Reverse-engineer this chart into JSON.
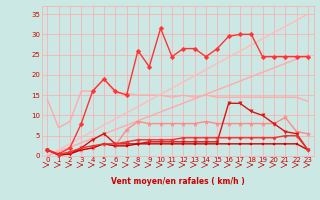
{
  "xlabel": "Vent moyen/en rafales ( km/h )",
  "bg_color": "#cce8e4",
  "grid_color": "#ffaaaa",
  "text_color": "#cc0000",
  "xlim": [
    -0.5,
    23.5
  ],
  "ylim": [
    0,
    37
  ],
  "yticks": [
    0,
    5,
    10,
    15,
    20,
    25,
    30,
    35
  ],
  "xticks": [
    0,
    1,
    2,
    3,
    4,
    5,
    6,
    7,
    8,
    9,
    10,
    11,
    12,
    13,
    14,
    15,
    16,
    17,
    18,
    19,
    20,
    21,
    22,
    23
  ],
  "line_flat_pink": {
    "color": "#ffaaaa",
    "lw": 1.0,
    "y": [
      14,
      7,
      8.5,
      16,
      16,
      19,
      15.5,
      15.5,
      15,
      15,
      15,
      14.5,
      15,
      14.5,
      15,
      14.5,
      14.5,
      14.5,
      14.5,
      14.5,
      14.5,
      14.5,
      14.5,
      13.5
    ]
  },
  "line_diag1": {
    "color": "#ffbbbb",
    "lw": 1.0,
    "y": [
      0,
      1.52,
      3.04,
      4.57,
      6.09,
      7.61,
      9.13,
      10.65,
      12.17,
      13.7,
      15.22,
      16.74,
      18.26,
      19.78,
      21.3,
      22.83,
      24.35,
      25.87,
      27.39,
      28.91,
      30.43,
      31.96,
      33.48,
      35.0
    ]
  },
  "line_diag2": {
    "color": "#ffaaaa",
    "lw": 1.0,
    "y": [
      0,
      1.09,
      2.17,
      3.26,
      4.35,
      5.43,
      6.52,
      7.61,
      8.7,
      9.78,
      10.87,
      11.96,
      13.04,
      14.13,
      15.22,
      16.3,
      17.39,
      18.48,
      19.57,
      20.65,
      21.74,
      22.83,
      23.91,
      25.0
    ]
  },
  "line_salmon_star": {
    "color": "#ff8888",
    "lw": 1.0,
    "marker": "*",
    "ms": 3.5,
    "y": [
      1.5,
      0.5,
      1,
      1.5,
      2,
      3,
      2.5,
      6.5,
      8.5,
      8,
      8,
      8,
      8,
      8,
      8.5,
      8,
      8,
      8,
      8,
      8,
      8,
      9.5,
      6,
      5.5
    ]
  },
  "line_main_red": {
    "color": "#ff3333",
    "lw": 1.0,
    "marker": "D",
    "ms": 2.5,
    "y": [
      1.5,
      0.5,
      2,
      8,
      16,
      19,
      16,
      15,
      26,
      22,
      31.5,
      24.5,
      26.5,
      26.5,
      24.5,
      26.5,
      29.5,
      30,
      30,
      24.5,
      24.5,
      24.5,
      24.5,
      24.5
    ]
  },
  "line_triangle": {
    "color": "#dd1111",
    "lw": 1.0,
    "marker": "v",
    "ms": 2.5,
    "y": [
      1.5,
      0.2,
      0.5,
      2,
      4,
      5.5,
      3,
      3,
      3,
      3.5,
      3.5,
      3.5,
      3.5,
      3.5,
      3.5,
      3.5,
      13,
      13,
      11,
      10,
      8,
      6,
      5.5,
      1.5
    ]
  },
  "line_square": {
    "color": "#cc0000",
    "lw": 1.0,
    "marker": "s",
    "ms": 1.8,
    "y": [
      1.5,
      0.3,
      0.5,
      1.5,
      2,
      3,
      2.5,
      2.5,
      3,
      3,
      3,
      3,
      3,
      3,
      3,
      3,
      3,
      3,
      3,
      3,
      3,
      3,
      3,
      1.5
    ]
  },
  "line_diamond": {
    "color": "#ee3333",
    "lw": 1.0,
    "marker": "D",
    "ms": 1.8,
    "y": [
      1.5,
      0.3,
      1,
      2,
      2.5,
      3,
      3,
      3.5,
      4,
      4,
      4,
      4,
      4.5,
      4.5,
      4.5,
      4.5,
      4.5,
      4.5,
      4.5,
      4.5,
      4.5,
      5,
      5,
      1.5
    ]
  }
}
